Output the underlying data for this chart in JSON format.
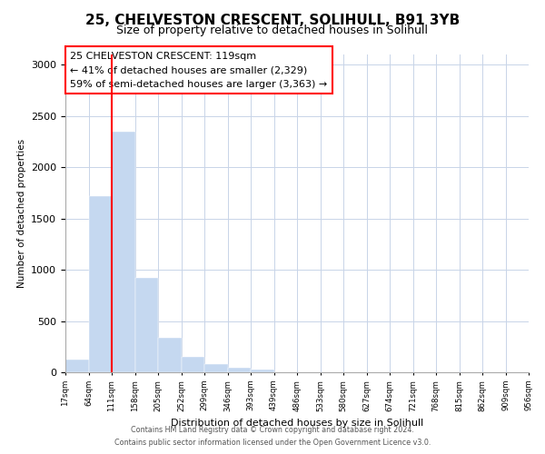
{
  "title": "25, CHELVESTON CRESCENT, SOLIHULL, B91 3YB",
  "subtitle": "Size of property relative to detached houses in Solihull",
  "bar_heights": [
    120,
    1720,
    2350,
    920,
    340,
    155,
    80,
    40,
    30,
    0,
    0,
    0,
    0,
    0,
    0,
    0,
    0,
    0,
    0,
    0
  ],
  "bin_labels": [
    "17sqm",
    "64sqm",
    "111sqm",
    "158sqm",
    "205sqm",
    "252sqm",
    "299sqm",
    "346sqm",
    "393sqm",
    "439sqm",
    "486sqm",
    "533sqm",
    "580sqm",
    "627sqm",
    "674sqm",
    "721sqm",
    "768sqm",
    "815sqm",
    "862sqm",
    "909sqm",
    "956sqm"
  ],
  "bar_color": "#c5d8f0",
  "bar_edge_color": "#c5d8f0",
  "red_line_x": 1.5,
  "annotation_line1": "25 CHELVESTON CRESCENT: 119sqm",
  "annotation_line2": "← 41% of detached houses are smaller (2,329)",
  "annotation_line3": "59% of semi-detached houses are larger (3,363) →",
  "ylabel": "Number of detached properties",
  "xlabel": "Distribution of detached houses by size in Solihull",
  "ylim": [
    0,
    3100
  ],
  "yticks": [
    0,
    500,
    1000,
    1500,
    2000,
    2500,
    3000
  ],
  "footer_line1": "Contains HM Land Registry data © Crown copyright and database right 2024.",
  "footer_line2": "Contains public sector information licensed under the Open Government Licence v3.0.",
  "bg_color": "#ffffff",
  "grid_color": "#c8d4e8",
  "annotation_fontsize": 8.0,
  "title_fontsize": 11,
  "subtitle_fontsize": 9
}
